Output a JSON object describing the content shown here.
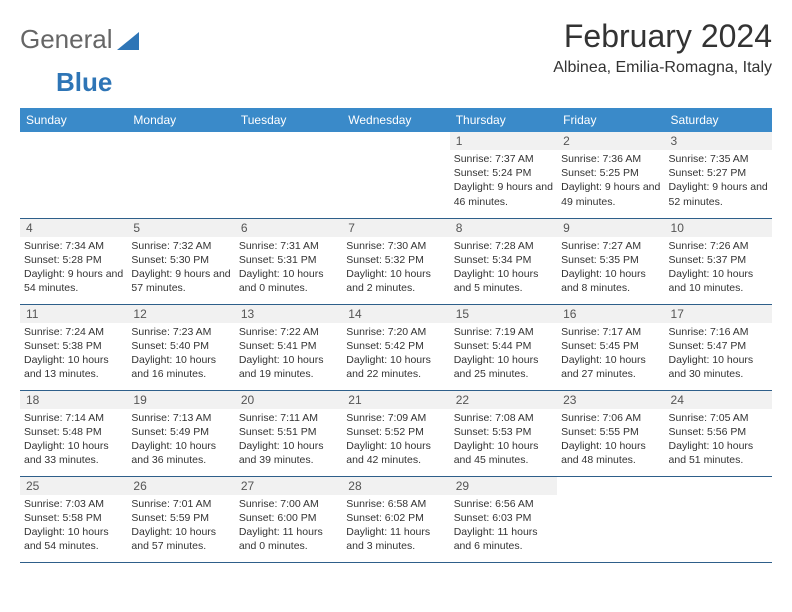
{
  "brand": {
    "part1": "General",
    "part2": "Blue",
    "logo_fill": "#2e75b6"
  },
  "title": "February 2024",
  "subtitle": "Albinea, Emilia-Romagna, Italy",
  "colors": {
    "header_bg": "#3a8ac9",
    "header_fg": "#ffffff",
    "row_border": "#2e5f8a",
    "daynum_bg": "#f1f1f1",
    "text": "#333333",
    "background": "#ffffff"
  },
  "fonts": {
    "title_size_pt": 24,
    "subtitle_size_pt": 12,
    "header_size_pt": 9,
    "cell_size_pt": 8
  },
  "layout": {
    "columns": 7,
    "rows": 5
  },
  "days_of_week": [
    "Sunday",
    "Monday",
    "Tuesday",
    "Wednesday",
    "Thursday",
    "Friday",
    "Saturday"
  ],
  "weeks": [
    [
      {
        "num": "",
        "sunrise": "",
        "sunset": "",
        "daylight": ""
      },
      {
        "num": "",
        "sunrise": "",
        "sunset": "",
        "daylight": ""
      },
      {
        "num": "",
        "sunrise": "",
        "sunset": "",
        "daylight": ""
      },
      {
        "num": "",
        "sunrise": "",
        "sunset": "",
        "daylight": ""
      },
      {
        "num": "1",
        "sunrise": "Sunrise: 7:37 AM",
        "sunset": "Sunset: 5:24 PM",
        "daylight": "Daylight: 9 hours and 46 minutes."
      },
      {
        "num": "2",
        "sunrise": "Sunrise: 7:36 AM",
        "sunset": "Sunset: 5:25 PM",
        "daylight": "Daylight: 9 hours and 49 minutes."
      },
      {
        "num": "3",
        "sunrise": "Sunrise: 7:35 AM",
        "sunset": "Sunset: 5:27 PM",
        "daylight": "Daylight: 9 hours and 52 minutes."
      }
    ],
    [
      {
        "num": "4",
        "sunrise": "Sunrise: 7:34 AM",
        "sunset": "Sunset: 5:28 PM",
        "daylight": "Daylight: 9 hours and 54 minutes."
      },
      {
        "num": "5",
        "sunrise": "Sunrise: 7:32 AM",
        "sunset": "Sunset: 5:30 PM",
        "daylight": "Daylight: 9 hours and 57 minutes."
      },
      {
        "num": "6",
        "sunrise": "Sunrise: 7:31 AM",
        "sunset": "Sunset: 5:31 PM",
        "daylight": "Daylight: 10 hours and 0 minutes."
      },
      {
        "num": "7",
        "sunrise": "Sunrise: 7:30 AM",
        "sunset": "Sunset: 5:32 PM",
        "daylight": "Daylight: 10 hours and 2 minutes."
      },
      {
        "num": "8",
        "sunrise": "Sunrise: 7:28 AM",
        "sunset": "Sunset: 5:34 PM",
        "daylight": "Daylight: 10 hours and 5 minutes."
      },
      {
        "num": "9",
        "sunrise": "Sunrise: 7:27 AM",
        "sunset": "Sunset: 5:35 PM",
        "daylight": "Daylight: 10 hours and 8 minutes."
      },
      {
        "num": "10",
        "sunrise": "Sunrise: 7:26 AM",
        "sunset": "Sunset: 5:37 PM",
        "daylight": "Daylight: 10 hours and 10 minutes."
      }
    ],
    [
      {
        "num": "11",
        "sunrise": "Sunrise: 7:24 AM",
        "sunset": "Sunset: 5:38 PM",
        "daylight": "Daylight: 10 hours and 13 minutes."
      },
      {
        "num": "12",
        "sunrise": "Sunrise: 7:23 AM",
        "sunset": "Sunset: 5:40 PM",
        "daylight": "Daylight: 10 hours and 16 minutes."
      },
      {
        "num": "13",
        "sunrise": "Sunrise: 7:22 AM",
        "sunset": "Sunset: 5:41 PM",
        "daylight": "Daylight: 10 hours and 19 minutes."
      },
      {
        "num": "14",
        "sunrise": "Sunrise: 7:20 AM",
        "sunset": "Sunset: 5:42 PM",
        "daylight": "Daylight: 10 hours and 22 minutes."
      },
      {
        "num": "15",
        "sunrise": "Sunrise: 7:19 AM",
        "sunset": "Sunset: 5:44 PM",
        "daylight": "Daylight: 10 hours and 25 minutes."
      },
      {
        "num": "16",
        "sunrise": "Sunrise: 7:17 AM",
        "sunset": "Sunset: 5:45 PM",
        "daylight": "Daylight: 10 hours and 27 minutes."
      },
      {
        "num": "17",
        "sunrise": "Sunrise: 7:16 AM",
        "sunset": "Sunset: 5:47 PM",
        "daylight": "Daylight: 10 hours and 30 minutes."
      }
    ],
    [
      {
        "num": "18",
        "sunrise": "Sunrise: 7:14 AM",
        "sunset": "Sunset: 5:48 PM",
        "daylight": "Daylight: 10 hours and 33 minutes."
      },
      {
        "num": "19",
        "sunrise": "Sunrise: 7:13 AM",
        "sunset": "Sunset: 5:49 PM",
        "daylight": "Daylight: 10 hours and 36 minutes."
      },
      {
        "num": "20",
        "sunrise": "Sunrise: 7:11 AM",
        "sunset": "Sunset: 5:51 PM",
        "daylight": "Daylight: 10 hours and 39 minutes."
      },
      {
        "num": "21",
        "sunrise": "Sunrise: 7:09 AM",
        "sunset": "Sunset: 5:52 PM",
        "daylight": "Daylight: 10 hours and 42 minutes."
      },
      {
        "num": "22",
        "sunrise": "Sunrise: 7:08 AM",
        "sunset": "Sunset: 5:53 PM",
        "daylight": "Daylight: 10 hours and 45 minutes."
      },
      {
        "num": "23",
        "sunrise": "Sunrise: 7:06 AM",
        "sunset": "Sunset: 5:55 PM",
        "daylight": "Daylight: 10 hours and 48 minutes."
      },
      {
        "num": "24",
        "sunrise": "Sunrise: 7:05 AM",
        "sunset": "Sunset: 5:56 PM",
        "daylight": "Daylight: 10 hours and 51 minutes."
      }
    ],
    [
      {
        "num": "25",
        "sunrise": "Sunrise: 7:03 AM",
        "sunset": "Sunset: 5:58 PM",
        "daylight": "Daylight: 10 hours and 54 minutes."
      },
      {
        "num": "26",
        "sunrise": "Sunrise: 7:01 AM",
        "sunset": "Sunset: 5:59 PM",
        "daylight": "Daylight: 10 hours and 57 minutes."
      },
      {
        "num": "27",
        "sunrise": "Sunrise: 7:00 AM",
        "sunset": "Sunset: 6:00 PM",
        "daylight": "Daylight: 11 hours and 0 minutes."
      },
      {
        "num": "28",
        "sunrise": "Sunrise: 6:58 AM",
        "sunset": "Sunset: 6:02 PM",
        "daylight": "Daylight: 11 hours and 3 minutes."
      },
      {
        "num": "29",
        "sunrise": "Sunrise: 6:56 AM",
        "sunset": "Sunset: 6:03 PM",
        "daylight": "Daylight: 11 hours and 6 minutes."
      },
      {
        "num": "",
        "sunrise": "",
        "sunset": "",
        "daylight": ""
      },
      {
        "num": "",
        "sunrise": "",
        "sunset": "",
        "daylight": ""
      }
    ]
  ]
}
